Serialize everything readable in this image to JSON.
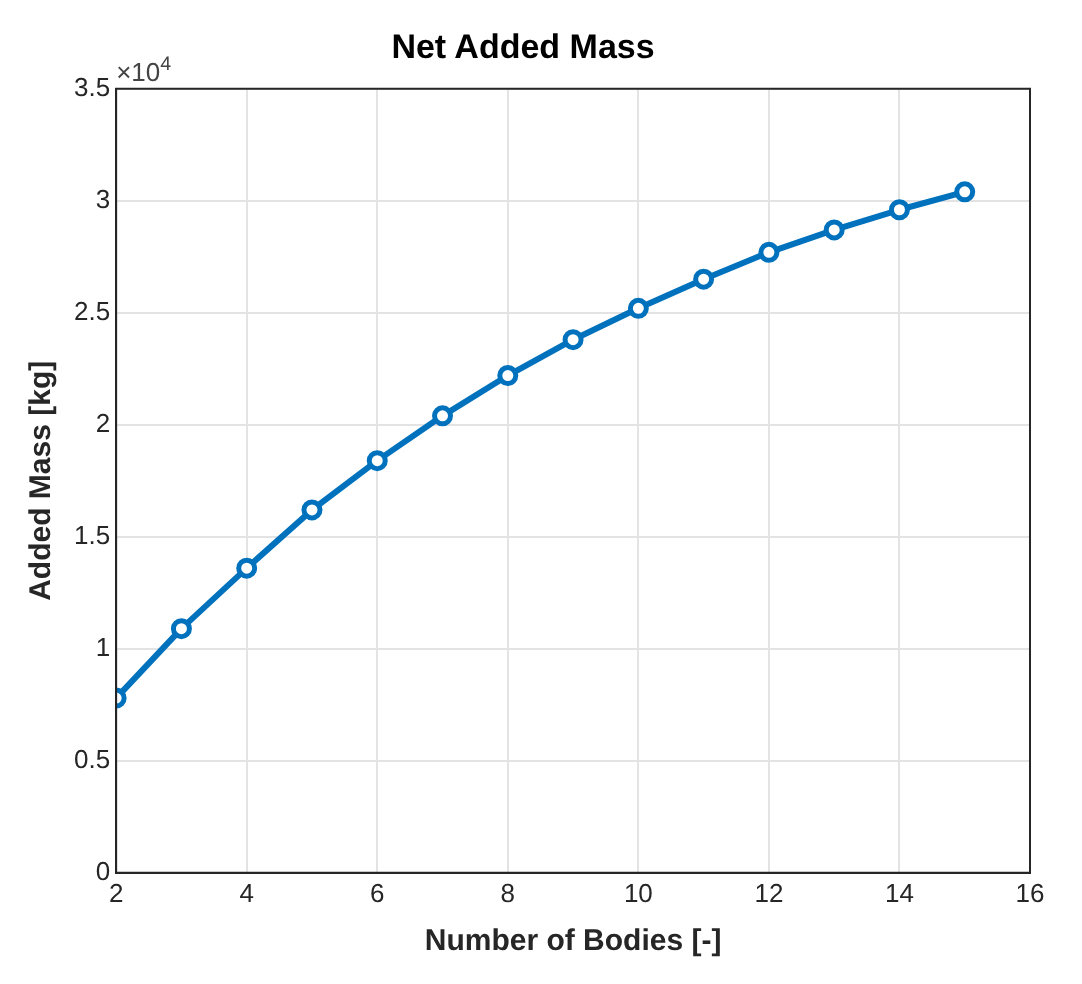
{
  "chart_data": {
    "type": "line",
    "title": "Net Added Mass",
    "xlabel": "Number of Bodies [-]",
    "ylabel": "Added Mass [kg]",
    "annotations": [
      "×10$^{4}$"
    ],
    "x": [
      2,
      3,
      4,
      5,
      6,
      7,
      8,
      9,
      10,
      11,
      12,
      13,
      14,
      15
    ],
    "series": [
      {
        "color": "#0072bd",
        "values": [
          0.78,
          1.09,
          1.36,
          1.62,
          1.84,
          2.04,
          2.22,
          2.38,
          2.52,
          2.65,
          2.77,
          2.87,
          2.96,
          3.04
        ]
      }
    ],
    "xlim": [
      2,
      16
    ],
    "xticks": [
      2,
      4,
      6,
      8,
      10,
      12,
      14,
      16
    ],
    "ylim": [
      0,
      3.5
    ],
    "yticks": [
      0,
      0.5,
      1,
      1.5,
      2,
      2.5,
      3,
      3.5
    ],
    "grid": true,
    "marker": "circle",
    "line_style": "solid"
  }
}
